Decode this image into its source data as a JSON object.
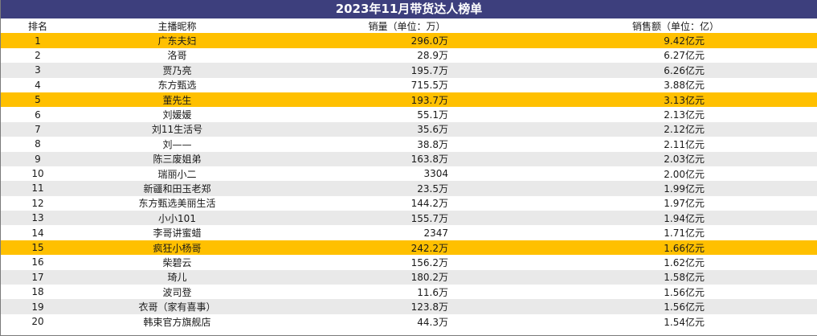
{
  "title": "2023年11月带货达人榜单",
  "headers": {
    "rank": "排名",
    "name": "主播昵称",
    "volume": "销量（单位：万）",
    "sales": "销售额（单位：亿）"
  },
  "highlight_color": "#ffc000",
  "header_bar_color": "#3d3f7d",
  "rows": [
    {
      "rank": "1",
      "name": "广东夫妇",
      "volume": "296.0万",
      "sales": "9.42亿元",
      "highlight": true
    },
    {
      "rank": "2",
      "name": "洛哥",
      "volume": "28.9万",
      "sales": "6.27亿元",
      "highlight": false
    },
    {
      "rank": "3",
      "name": "贾乃亮",
      "volume": "195.7万",
      "sales": "6.26亿元",
      "highlight": false
    },
    {
      "rank": "4",
      "name": "东方甄选",
      "volume": "715.5万",
      "sales": "3.88亿元",
      "highlight": false
    },
    {
      "rank": "5",
      "name": "董先生",
      "volume": "193.7万",
      "sales": "3.13亿元",
      "highlight": true
    },
    {
      "rank": "6",
      "name": "刘媛媛",
      "volume": "55.1万",
      "sales": "2.13亿元",
      "highlight": false
    },
    {
      "rank": "7",
      "name": "刘11生活号",
      "volume": "35.6万",
      "sales": "2.12亿元",
      "highlight": false
    },
    {
      "rank": "8",
      "name": "刘——",
      "volume": "38.8万",
      "sales": "2.11亿元",
      "highlight": false
    },
    {
      "rank": "9",
      "name": "陈三废姐弟",
      "volume": "163.8万",
      "sales": "2.03亿元",
      "highlight": false
    },
    {
      "rank": "10",
      "name": "瑞丽小二",
      "volume": "3304",
      "sales": "2.00亿元",
      "highlight": false
    },
    {
      "rank": "11",
      "name": "新疆和田玉老郑",
      "volume": "23.5万",
      "sales": "1.99亿元",
      "highlight": false
    },
    {
      "rank": "12",
      "name": "东方甄选美丽生活",
      "volume": "144.2万",
      "sales": "1.97亿元",
      "highlight": false
    },
    {
      "rank": "13",
      "name": "小小101",
      "volume": "155.7万",
      "sales": "1.94亿元",
      "highlight": false
    },
    {
      "rank": "14",
      "name": "李哥讲蜜蜡",
      "volume": "2347",
      "sales": "1.71亿元",
      "highlight": false
    },
    {
      "rank": "15",
      "name": "疯狂小杨哥",
      "volume": "242.2万",
      "sales": "1.66亿元",
      "highlight": true
    },
    {
      "rank": "16",
      "name": "柴碧云",
      "volume": "156.2万",
      "sales": "1.62亿元",
      "highlight": false
    },
    {
      "rank": "17",
      "name": "琦儿",
      "volume": "180.2万",
      "sales": "1.58亿元",
      "highlight": false
    },
    {
      "rank": "18",
      "name": "波司登",
      "volume": "11.6万",
      "sales": "1.56亿元",
      "highlight": false
    },
    {
      "rank": "19",
      "name": "衣哥（家有喜事）",
      "volume": "123.8万",
      "sales": "1.56亿元",
      "highlight": false
    },
    {
      "rank": "20",
      "name": "韩束官方旗舰店",
      "volume": "44.3万",
      "sales": "1.54亿元",
      "highlight": false
    }
  ]
}
